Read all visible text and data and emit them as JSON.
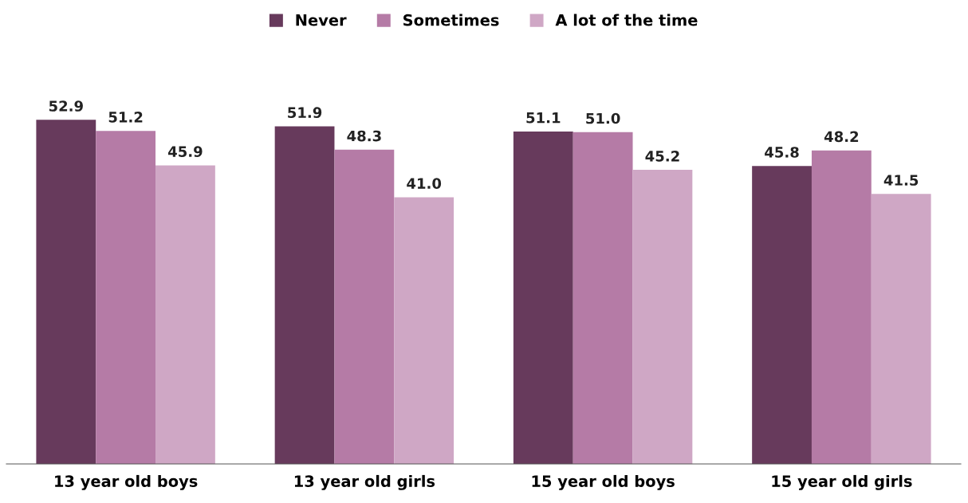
{
  "chart_data": {
    "type": "bar",
    "categories": [
      "13 year old boys",
      "13 year old girls",
      "15 year old boys",
      "15 year old girls"
    ],
    "series": [
      {
        "name": "Never",
        "color": "#673a5c",
        "values": [
          52.9,
          51.9,
          51.1,
          45.8
        ],
        "value_labels": [
          "52.9",
          "51.9",
          "51.1",
          "45.8"
        ]
      },
      {
        "name": "Sometimes",
        "color": "#b57ba6",
        "values": [
          51.2,
          48.3,
          51.0,
          48.2
        ],
        "value_labels": [
          "51.2",
          "48.3",
          "51.0",
          "48.2"
        ]
      },
      {
        "name": "A lot of the time",
        "color": "#cfa7c5",
        "values": [
          45.9,
          41.0,
          45.2,
          41.5
        ],
        "value_labels": [
          "45.9",
          "41.0",
          "45.2",
          "41.5"
        ]
      }
    ],
    "tick_labels": "x",
    "legend": "top",
    "grid": false
  }
}
